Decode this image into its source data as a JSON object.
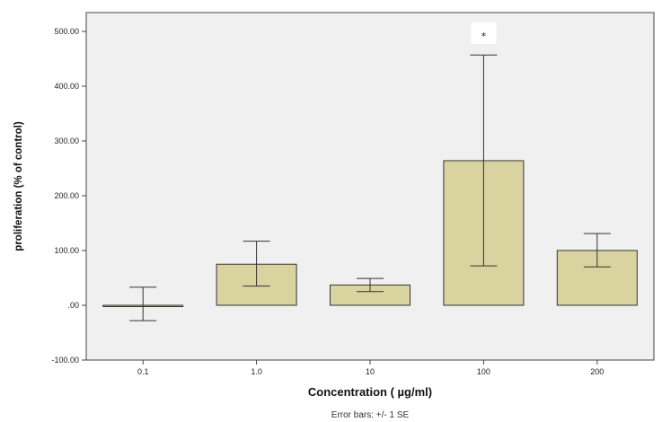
{
  "chart_data": {
    "type": "bar",
    "categories": [
      "0.1",
      "1.0",
      "10",
      "100",
      "200"
    ],
    "values": [
      0.0,
      75.0,
      37.0,
      264.0,
      100.0
    ],
    "error_low": [
      -28.0,
      35.0,
      25.0,
      72.0,
      70.0
    ],
    "error_high": [
      33.0,
      117.0,
      49.0,
      457.0,
      131.0
    ],
    "xlabel": "Concentration ( µg/ml)",
    "ylabel": "proliferation (% of control)",
    "ylim": [
      -100,
      500
    ],
    "yticks": [
      -100,
      0,
      100,
      200,
      300,
      400,
      500
    ],
    "ytick_labels": [
      "-100.00",
      ".00",
      "100.00",
      "200.00",
      "300.00",
      "400.00",
      "500.00"
    ],
    "annotations": [
      {
        "category": "100",
        "text": "*"
      }
    ],
    "footnote": "Error bars: +/- 1 SE",
    "grid": false,
    "colors": {
      "bar": "#d9d3a0",
      "plot_bg": "#f0f0f0",
      "error": "#333333"
    }
  }
}
